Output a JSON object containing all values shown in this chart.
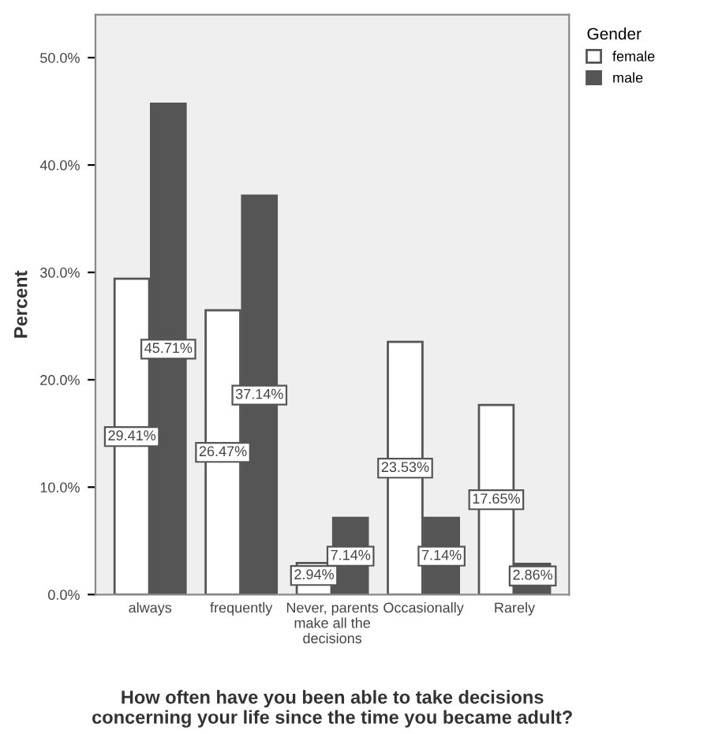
{
  "chart_data": {
    "type": "bar",
    "categories": [
      "always",
      "frequently",
      "Never, parents\nmake all the\ndecisions",
      "Occasionally",
      "Rarely"
    ],
    "xlabel": "How often have you been able to take decisions concerning your life since the time you became adult?",
    "ylabel": "Percent",
    "legend_title": "Gender",
    "legend": "right",
    "series": [
      {
        "name": "female",
        "color": "#ffffff",
        "values": [
          29.41,
          26.47,
          2.94,
          23.53,
          17.65
        ],
        "value_labels": [
          "29.41%",
          "26.47%",
          "2.94%",
          "23.53%",
          "17.65%"
        ]
      },
      {
        "name": "male",
        "color": "#555555",
        "values": [
          45.71,
          37.14,
          7.14,
          7.14,
          2.86
        ],
        "value_labels": [
          "45.71%",
          "37.14%",
          "7.14%",
          "7.14%",
          "2.86%"
        ]
      }
    ],
    "ylim": [
      0,
      54
    ],
    "yticks": [
      {
        "value": 0,
        "label": "0.0%"
      },
      {
        "value": 10,
        "label": "10.0%"
      },
      {
        "value": 20,
        "label": "20.0%"
      },
      {
        "value": 30,
        "label": "30.0%"
      },
      {
        "value": 40,
        "label": "40.0%"
      },
      {
        "value": 50,
        "label": "50.0%"
      }
    ],
    "grid": false
  }
}
